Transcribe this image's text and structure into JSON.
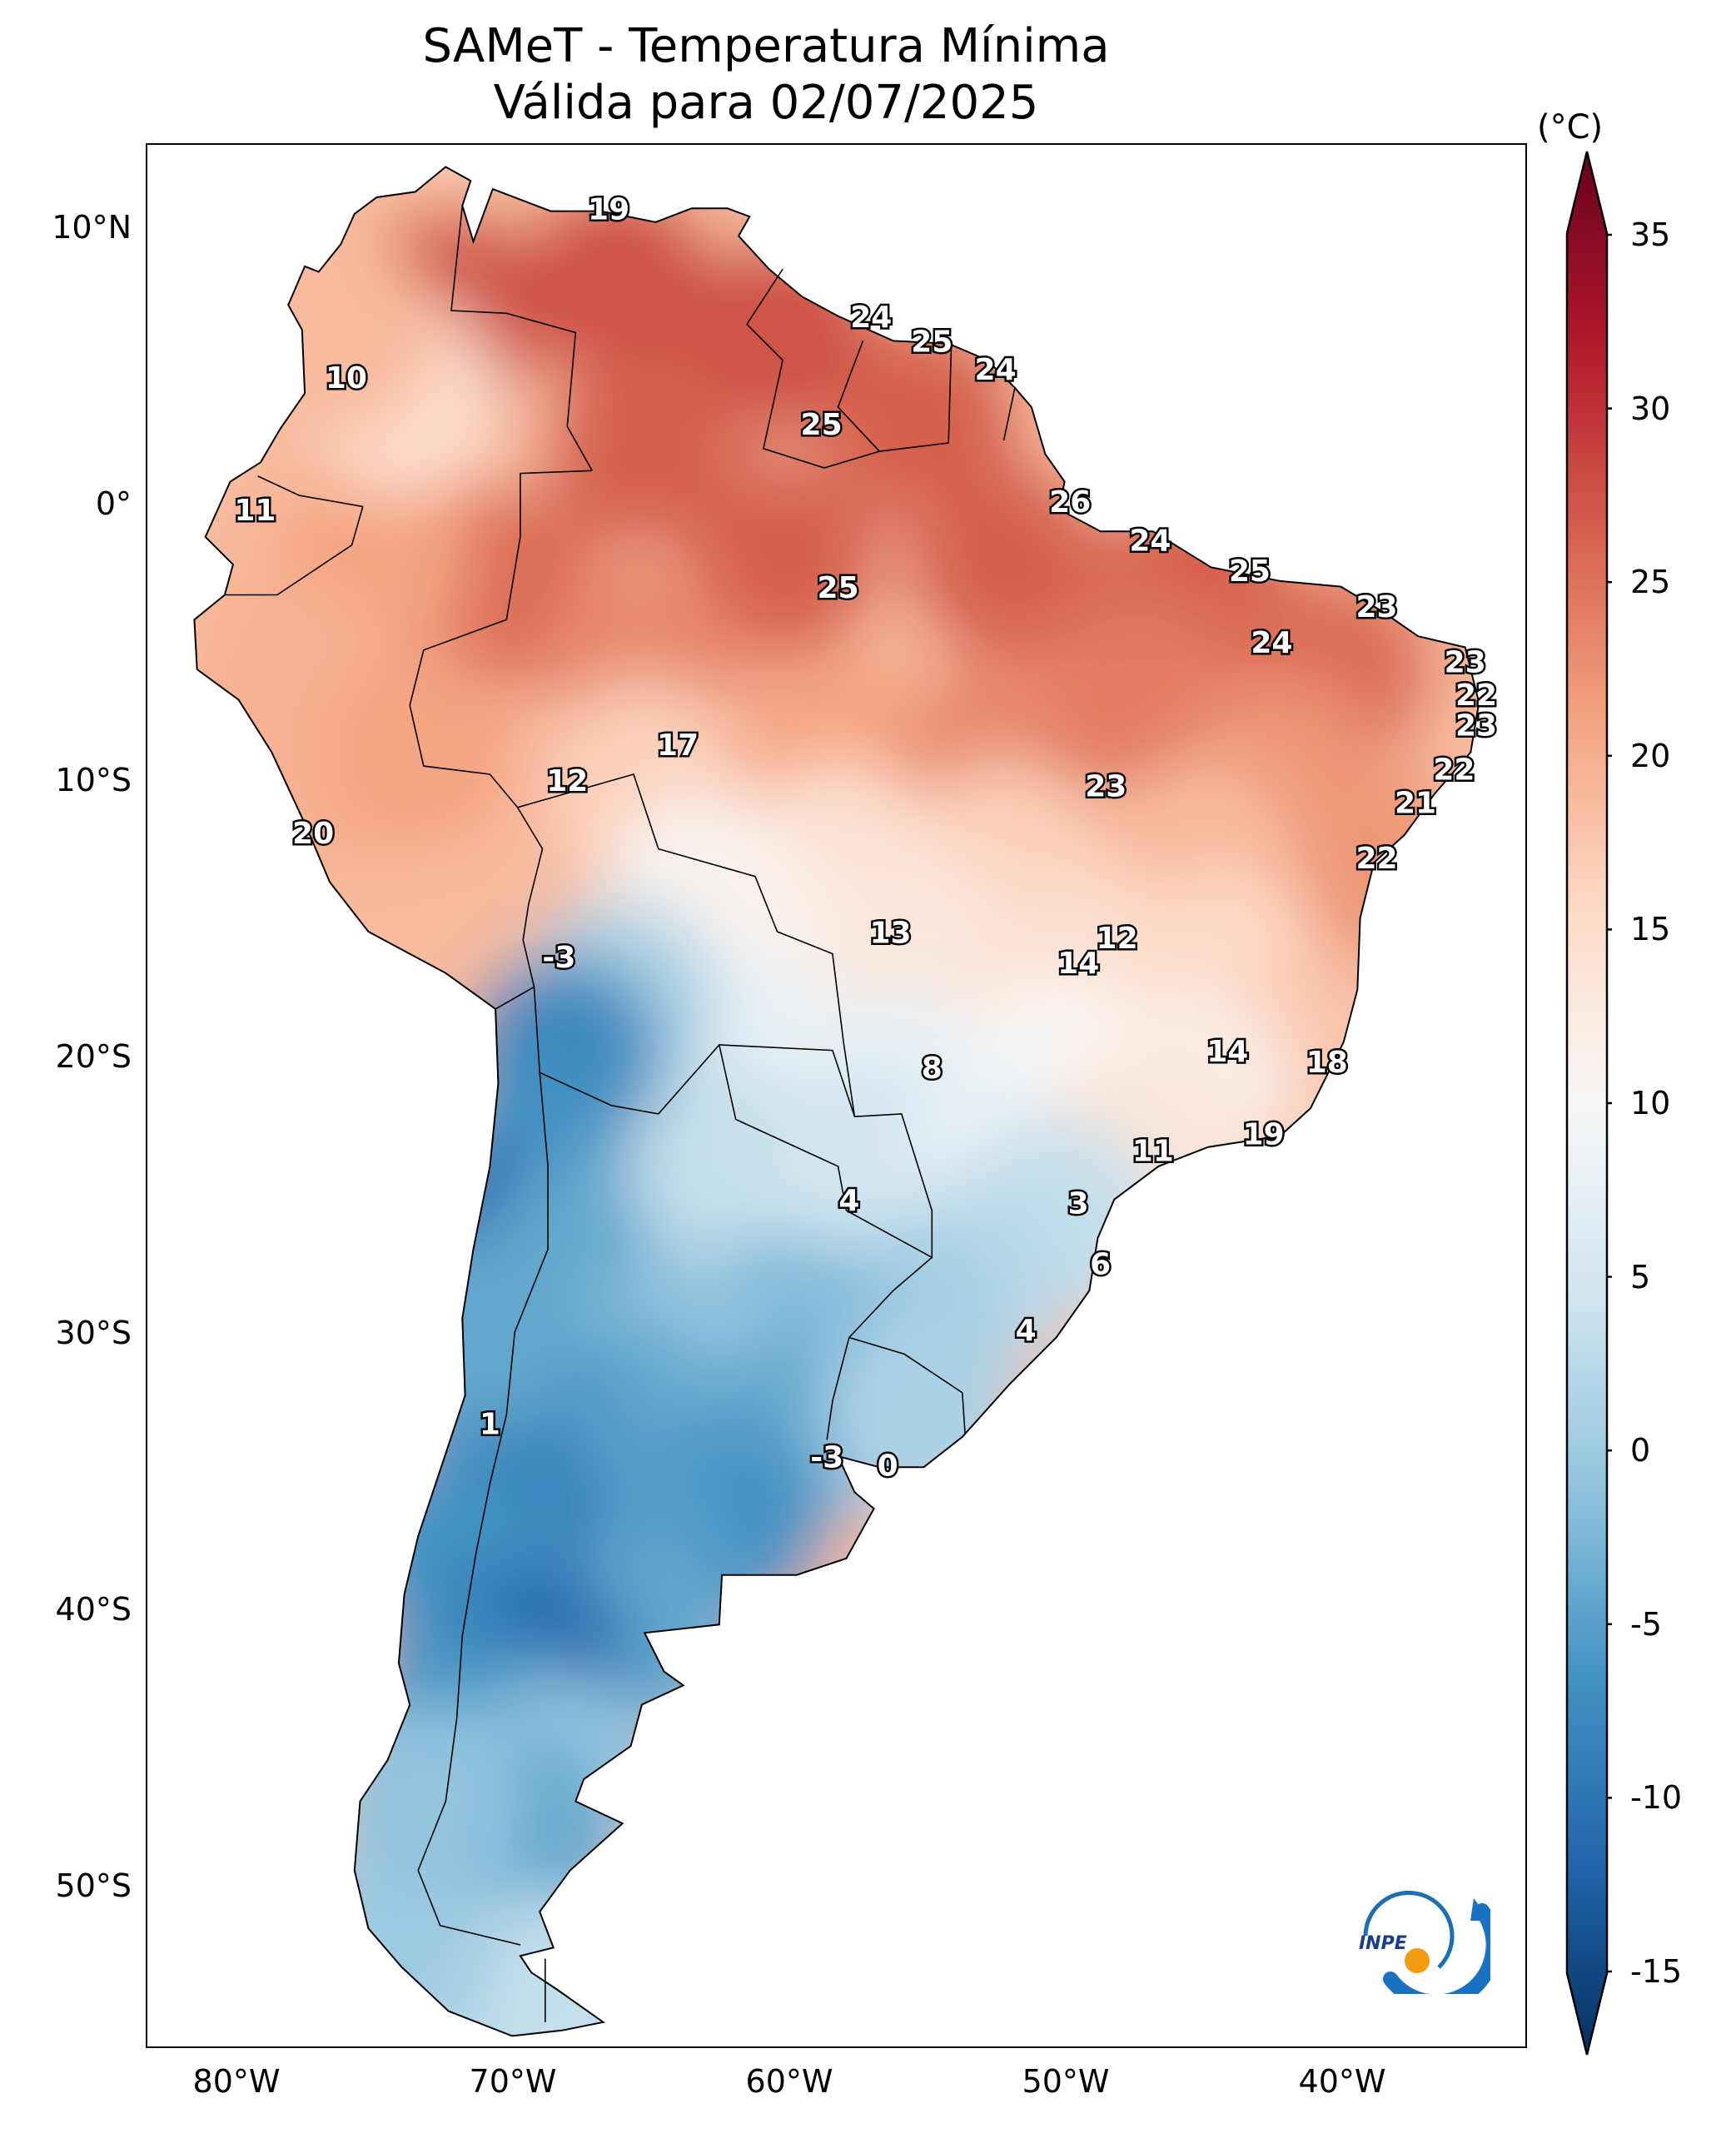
{
  "title": {
    "line1": "SAMeT - Temperatura Mínima",
    "line2": "Válida para 02/07/2025"
  },
  "colorbar": {
    "unit": "(°C)",
    "ticks": [
      "35",
      "30",
      "25",
      "20",
      "15",
      "10",
      "5",
      "0",
      "-5",
      "-10",
      "-15"
    ],
    "colors": [
      "#053061",
      "#2166ac",
      "#4393c3",
      "#92c5de",
      "#d1e5f0",
      "#f7f7f7",
      "#fddbc7",
      "#f4a582",
      "#d6604d",
      "#b2182b",
      "#67001f"
    ]
  },
  "axes": {
    "lat_labels": [
      "10°N",
      "0°",
      "10°S",
      "20°S",
      "30°S",
      "40°S",
      "50°S"
    ],
    "lon_labels": [
      "80°W",
      "70°W",
      "60°W",
      "50°W",
      "40°W"
    ]
  },
  "logo": {
    "text": "INPE"
  },
  "chart_data": {
    "type": "heatmap",
    "title": "SAMeT - Temperatura Mínima",
    "subtitle": "Válida para 02/07/2025",
    "units": "°C",
    "colorbar_range": [
      -15,
      35
    ],
    "lon_range": [
      -83,
      -33
    ],
    "lat_range": [
      -56,
      13
    ],
    "stations": [
      {
        "lon": -66.3,
        "lat": 10.6,
        "value": "19"
      },
      {
        "lon": -56.8,
        "lat": 6.7,
        "value": "24"
      },
      {
        "lon": -54.6,
        "lat": 5.8,
        "value": "25"
      },
      {
        "lon": -52.3,
        "lat": 4.8,
        "value": "24"
      },
      {
        "lon": -75.8,
        "lat": 4.5,
        "value": "10"
      },
      {
        "lon": -58.6,
        "lat": 2.8,
        "value": "25"
      },
      {
        "lon": -49.6,
        "lat": 0.0,
        "value": "26"
      },
      {
        "lon": -79.1,
        "lat": -0.3,
        "value": "11"
      },
      {
        "lon": -46.7,
        "lat": -1.4,
        "value": "24"
      },
      {
        "lon": -58.0,
        "lat": -3.1,
        "value": "25"
      },
      {
        "lon": -43.1,
        "lat": -2.5,
        "value": "25"
      },
      {
        "lon": -38.5,
        "lat": -3.8,
        "value": "23"
      },
      {
        "lon": -42.3,
        "lat": -5.1,
        "value": "24"
      },
      {
        "lon": -35.3,
        "lat": -5.8,
        "value": "23"
      },
      {
        "lon": -34.9,
        "lat": -7.0,
        "value": "22"
      },
      {
        "lon": -34.9,
        "lat": -8.1,
        "value": "23"
      },
      {
        "lon": -63.8,
        "lat": -8.8,
        "value": "17"
      },
      {
        "lon": -35.7,
        "lat": -9.7,
        "value": "22"
      },
      {
        "lon": -67.8,
        "lat": -10.1,
        "value": "12"
      },
      {
        "lon": -48.3,
        "lat": -10.3,
        "value": "23"
      },
      {
        "lon": -37.1,
        "lat": -10.9,
        "value": "21"
      },
      {
        "lon": -77.0,
        "lat": -12.0,
        "value": "20"
      },
      {
        "lon": -38.5,
        "lat": -12.9,
        "value": "22"
      },
      {
        "lon": -56.1,
        "lat": -15.6,
        "value": "13"
      },
      {
        "lon": -47.9,
        "lat": -15.8,
        "value": "12"
      },
      {
        "lon": -49.3,
        "lat": -16.7,
        "value": "14"
      },
      {
        "lon": -68.1,
        "lat": -16.5,
        "value": "-3"
      },
      {
        "lon": -43.9,
        "lat": -19.9,
        "value": "14"
      },
      {
        "lon": -40.3,
        "lat": -20.3,
        "value": "18"
      },
      {
        "lon": -54.6,
        "lat": -20.5,
        "value": "8"
      },
      {
        "lon": -42.6,
        "lat": -22.9,
        "value": "19"
      },
      {
        "lon": -46.6,
        "lat": -23.5,
        "value": "11"
      },
      {
        "lon": -57.6,
        "lat": -25.3,
        "value": "4"
      },
      {
        "lon": -49.3,
        "lat": -25.4,
        "value": "3"
      },
      {
        "lon": -48.5,
        "lat": -27.6,
        "value": "6"
      },
      {
        "lon": -51.2,
        "lat": -30.0,
        "value": "4"
      },
      {
        "lon": -70.6,
        "lat": -33.4,
        "value": "1"
      },
      {
        "lon": -58.4,
        "lat": -34.6,
        "value": "-3"
      },
      {
        "lon": -56.2,
        "lat": -34.9,
        "value": "0"
      }
    ]
  }
}
